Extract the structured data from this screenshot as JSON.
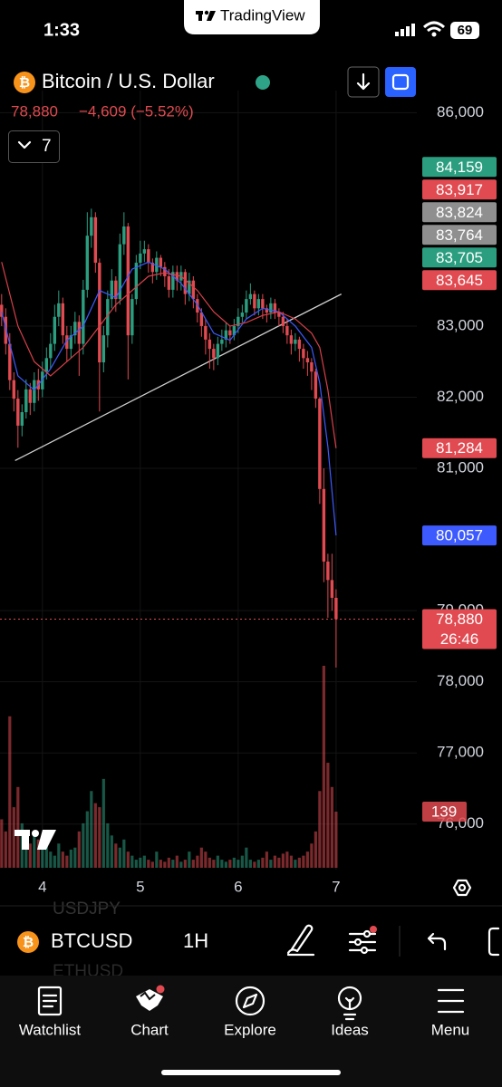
{
  "status_bar": {
    "time": "1:33",
    "app": "TradingView",
    "battery": "69"
  },
  "header": {
    "symbol_name": "Bitcoin / U.S. Dollar",
    "last_price": "78,880",
    "change": "−4,609 (−5.52%)",
    "indicators": "7"
  },
  "chart_data": {
    "type": "candlestick",
    "x": [
      -10,
      -9,
      -8,
      -7,
      -6,
      -5,
      -4,
      -3,
      -2,
      -1,
      0,
      1,
      2,
      3,
      4,
      5,
      6,
      7,
      8,
      9,
      10,
      11,
      12,
      13,
      14,
      15,
      16,
      17,
      18,
      19,
      20,
      21,
      22,
      23,
      24,
      25,
      26,
      27,
      28,
      29,
      30,
      31,
      32,
      33,
      34,
      35,
      36,
      37,
      38,
      39,
      40,
      41,
      42,
      43,
      44,
      45,
      46,
      47,
      48,
      49,
      50,
      51,
      52,
      53,
      54,
      55,
      56,
      57,
      58,
      59,
      60,
      61,
      62,
      63,
      64,
      65,
      66,
      67,
      68,
      69,
      70,
      71,
      72
    ],
    "open": [
      83300,
      83130,
      82750,
      82240,
      81980,
      81600,
      81790,
      82110,
      81920,
      82240,
      82110,
      82360,
      82550,
      82750,
      83130,
      83320,
      82870,
      82680,
      82870,
      83060,
      82750,
      83510,
      84270,
      84530,
      83890,
      82490,
      82870,
      83380,
      83640,
      83380,
      84150,
      84400,
      82870,
      83380,
      83890,
      84020,
      84080,
      83890,
      83760,
      83960,
      83830,
      83700,
      83510,
      83760,
      83640,
      83760,
      83450,
      83640,
      83380,
      83190,
      83000,
      82810,
      82680,
      82550,
      82750,
      82810,
      82940,
      82870,
      83000,
      83130,
      83190,
      83380,
      83450,
      83250,
      83380,
      83250,
      83190,
      83320,
      83190,
      83130,
      83000,
      82870,
      82750,
      82810,
      82680,
      82550,
      82490,
      82360,
      81980,
      80710,
      79690,
      79430,
      79180
    ],
    "high": [
      83450,
      83250,
      82900,
      82350,
      82100,
      81900,
      82250,
      82200,
      82350,
      82400,
      82500,
      82700,
      82900,
      83300,
      83500,
      83400,
      83000,
      83000,
      83200,
      83150,
      83650,
      84600,
      84650,
      84600,
      83950,
      83000,
      83500,
      83800,
      83700,
      84300,
      84600,
      84450,
      83450,
      84000,
      84200,
      84200,
      84150,
      83950,
      84050,
      84000,
      83900,
      83800,
      83850,
      83850,
      83850,
      83800,
      83750,
      83700,
      83450,
      83250,
      83100,
      82900,
      82750,
      82850,
      82950,
      83050,
      83000,
      83100,
      83250,
      83300,
      83500,
      83600,
      83500,
      83450,
      83450,
      83300,
      83400,
      83380,
      83250,
      83200,
      83100,
      82950,
      82900,
      82850,
      82750,
      82650,
      82550,
      82400,
      82000,
      81000,
      79800,
      79800,
      79300
    ],
    "low": [
      83000,
      82600,
      82100,
      81800,
      81290,
      81450,
      81700,
      81750,
      81800,
      81950,
      82000,
      82250,
      82400,
      82650,
      83000,
      82750,
      82500,
      82550,
      82750,
      82300,
      82600,
      83400,
      84100,
      83750,
      81800,
      82350,
      82700,
      83250,
      83200,
      83300,
      84000,
      82250,
      82750,
      83300,
      83800,
      83900,
      83750,
      83600,
      83650,
      83700,
      83550,
      83400,
      83400,
      83500,
      83500,
      83300,
      83350,
      83250,
      83050,
      82850,
      82600,
      82400,
      82380,
      82450,
      82650,
      82700,
      82750,
      82800,
      82900,
      83050,
      83100,
      83300,
      83150,
      83150,
      83100,
      83050,
      83100,
      83100,
      83000,
      82900,
      82750,
      82600,
      82650,
      82500,
      82400,
      82300,
      82100,
      81850,
      80500,
      79400,
      78900,
      79000,
      78200
    ],
    "close": [
      83130,
      82750,
      82240,
      81980,
      81600,
      81790,
      82110,
      81920,
      82240,
      82110,
      82360,
      82550,
      82750,
      83130,
      83320,
      82870,
      82680,
      82870,
      83060,
      82750,
      83510,
      84270,
      84530,
      83890,
      82490,
      82870,
      83380,
      83640,
      83380,
      84150,
      84400,
      82870,
      83380,
      83890,
      84020,
      84080,
      83890,
      83760,
      83960,
      83830,
      83700,
      83510,
      83760,
      83640,
      83760,
      83450,
      83640,
      83380,
      83190,
      83000,
      82810,
      82680,
      82550,
      82750,
      82810,
      82940,
      82870,
      83000,
      83130,
      83190,
      83380,
      83450,
      83250,
      83380,
      83250,
      83190,
      83320,
      83190,
      83130,
      83000,
      82870,
      82750,
      82810,
      82680,
      82550,
      82490,
      82360,
      81980,
      80710,
      79690,
      79430,
      79180,
      78880
    ],
    "volume": [
      120,
      90,
      375,
      150,
      200,
      110,
      80,
      60,
      90,
      70,
      50,
      60,
      40,
      30,
      60,
      40,
      30,
      45,
      50,
      90,
      110,
      140,
      190,
      160,
      150,
      220,
      110,
      80,
      60,
      50,
      70,
      40,
      30,
      20,
      25,
      30,
      20,
      15,
      40,
      20,
      15,
      25,
      20,
      30,
      15,
      20,
      40,
      20,
      30,
      50,
      40,
      25,
      20,
      30,
      20,
      15,
      20,
      25,
      20,
      30,
      50,
      20,
      15,
      20,
      25,
      40,
      20,
      30,
      25,
      35,
      40,
      30,
      20,
      25,
      30,
      40,
      60,
      90,
      190,
      500,
      260,
      200,
      139
    ],
    "up_color": "#2b9e80",
    "down_color": "#e04a50",
    "moving_averages": [
      {
        "color": "#3d5afe",
        "x": [
          -10,
          -6,
          -2,
          2,
          6,
          10,
          14,
          18,
          22,
          26,
          30,
          34,
          38,
          42,
          46,
          50,
          54,
          58,
          62,
          66,
          68,
          70,
          72
        ],
        "values": [
          83200,
          82300,
          82100,
          82400,
          82800,
          83000,
          83500,
          83400,
          83800,
          83900,
          83800,
          83600,
          83300,
          82900,
          82800,
          83100,
          83250,
          83200,
          83000,
          82700,
          82200,
          81300,
          80057
        ]
      },
      {
        "color": "#d8404a",
        "x": [
          -10,
          -6,
          -2,
          2,
          6,
          10,
          14,
          18,
          22,
          26,
          30,
          34,
          38,
          42,
          46,
          50,
          54,
          58,
          62,
          66,
          68,
          70,
          72
        ],
        "values": [
          83900,
          83000,
          82500,
          82300,
          82500,
          82700,
          83000,
          83300,
          83500,
          83700,
          83750,
          83700,
          83500,
          83200,
          83000,
          83050,
          83150,
          83200,
          83100,
          82900,
          82700,
          82100,
          81284
        ]
      }
    ],
    "trendline": {
      "color": "#cfcfcf",
      "x": [
        -6.7,
        73.3
      ],
      "values": [
        81110,
        83450
      ]
    },
    "xlim": [
      -10.4,
      91.8
    ],
    "xticks": [
      {
        "value": 0,
        "label": "4"
      },
      {
        "value": 24,
        "label": "5"
      },
      {
        "value": 48,
        "label": "6"
      },
      {
        "value": 72,
        "label": "7"
      }
    ],
    "ylim": [
      75360,
      86310
    ],
    "yticks": [
      {
        "value": 76000,
        "label": "76,000"
      },
      {
        "value": 77000,
        "label": "77,000"
      },
      {
        "value": 78000,
        "label": "78,000"
      },
      {
        "value": 79000,
        "label": "79,000"
      },
      {
        "value": 81000,
        "label": "81,000"
      },
      {
        "value": 82000,
        "label": "82,000"
      },
      {
        "value": 83000,
        "label": "83,000"
      },
      {
        "value": 86000,
        "label": "86,000"
      }
    ],
    "grid": true,
    "price_labels": [
      {
        "value": 84159,
        "label": "84,159",
        "color": "#2b9e80"
      },
      {
        "value": 83917,
        "label": "83,917",
        "color": "#e04a50"
      },
      {
        "value": 83824,
        "label": "83,824",
        "color": "#8f8f8f"
      },
      {
        "value": 83764,
        "label": "83,764",
        "color": "#8f8f8f"
      },
      {
        "value": 83705,
        "label": "83,705",
        "color": "#2b9e80"
      },
      {
        "value": 83645,
        "label": "83,645",
        "color": "#e04a50"
      },
      {
        "value": 81284,
        "label": "81,284",
        "color": "#e04a50"
      },
      {
        "value": 80057,
        "label": "80,057",
        "color": "#3d5afe"
      },
      {
        "value": 78880,
        "label": "78,880",
        "color": "#e04a50"
      }
    ],
    "countdown": "26:46"
  },
  "background_list": [
    "USDJPY",
    "ETHUSD"
  ],
  "toolbar": {
    "symbol": "BTCUSD",
    "interval": "1H"
  },
  "tab_bar": [
    "Watchlist",
    "Chart",
    "Explore",
    "Ideas",
    "Menu"
  ]
}
